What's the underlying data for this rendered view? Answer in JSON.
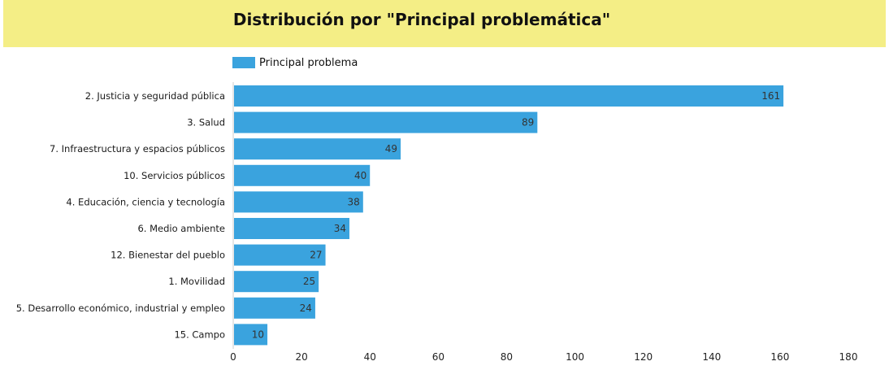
{
  "chart_data": {
    "type": "bar",
    "orientation": "horizontal",
    "title": "Distribución por \"Principal problemática\"",
    "legend": [
      "Principal problema"
    ],
    "legend_position": "top-left",
    "categories": [
      "2. Justicia y seguridad pública",
      "3. Salud",
      "7. Infraestructura y espacios públicos",
      "10. Servicios públicos",
      "4. Educación, ciencia y tecnología",
      "6. Medio ambiente",
      "12. Bienestar del pueblo",
      "1. Movilidad",
      "5. Desarrollo económico, industrial y empleo",
      "15. Campo"
    ],
    "series": [
      {
        "name": "Principal problema",
        "values": [
          161,
          89,
          49,
          40,
          38,
          34,
          27,
          25,
          24,
          10
        ]
      }
    ],
    "xlim": [
      0,
      180
    ],
    "xticks": [
      0,
      20,
      40,
      60,
      80,
      100,
      120,
      140,
      160,
      180
    ],
    "grid": false,
    "colors": {
      "bar": "#3aa3de",
      "title_band": "#f4ee86"
    }
  }
}
